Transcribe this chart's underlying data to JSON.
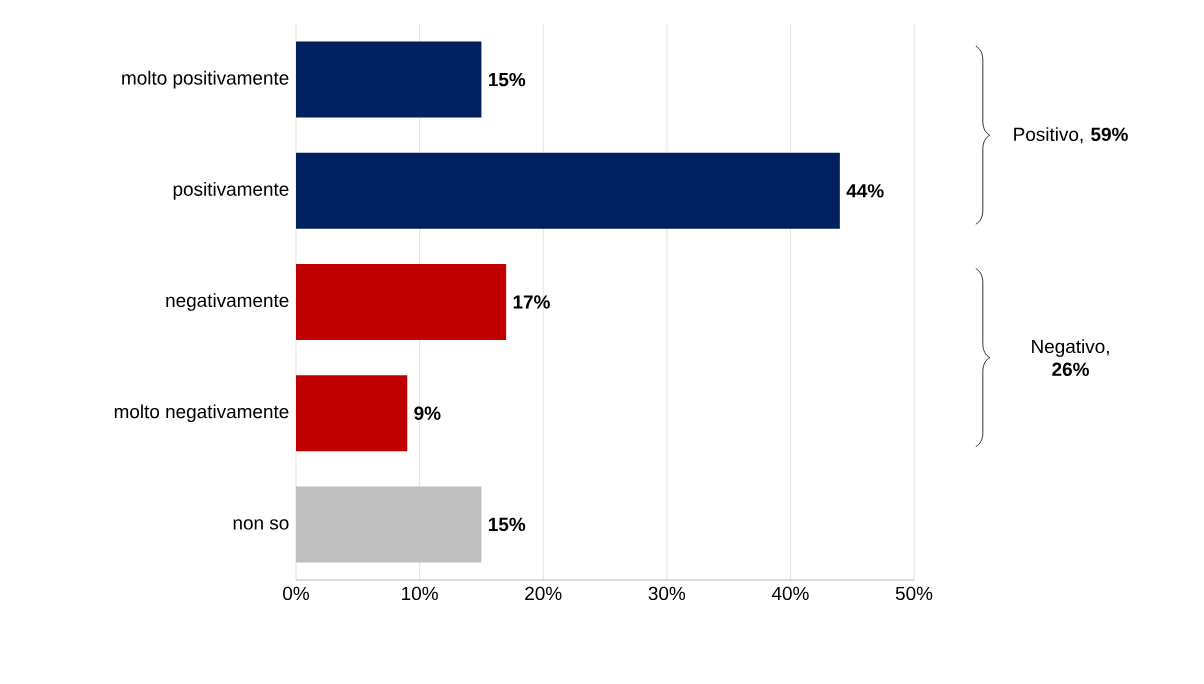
{
  "chart_data": {
    "type": "bar",
    "orientation": "horizontal",
    "categories": [
      "molto positivamente",
      "positivamente",
      "negativamente",
      "molto negativamente",
      "non so"
    ],
    "values": [
      15,
      44,
      17,
      9,
      15
    ],
    "colors": [
      "#002060",
      "#002060",
      "#c00000",
      "#c00000",
      "#bfbfbf"
    ],
    "value_labels": [
      "15%",
      "44%",
      "17%",
      "9%",
      "15%"
    ],
    "xlim": [
      0,
      50
    ],
    "xticks": [
      {
        "value": 0,
        "label": "0%"
      },
      {
        "value": 10,
        "label": "10%"
      },
      {
        "value": 20,
        "label": "20%"
      },
      {
        "value": 30,
        "label": "30%"
      },
      {
        "value": 40,
        "label": "40%"
      },
      {
        "value": 50,
        "label": "50%"
      }
    ],
    "grid": "x",
    "annotations": [
      "Positivo, **59%**",
      "Negativo, **26%**"
    ]
  }
}
